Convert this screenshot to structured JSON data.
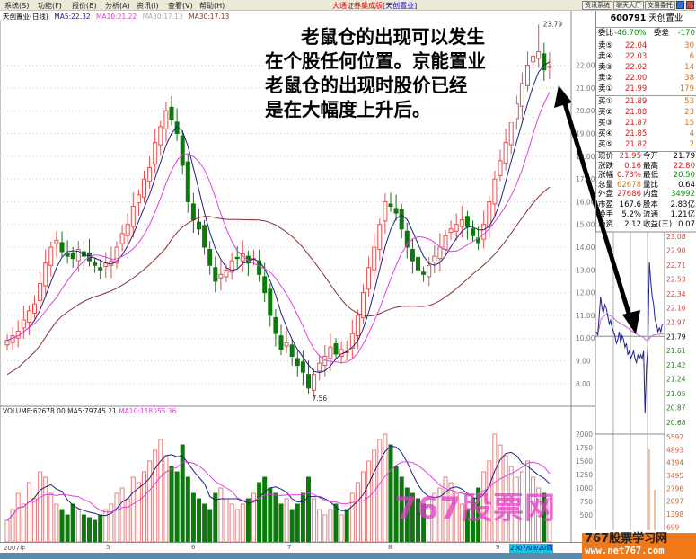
{
  "menu": [
    "系统(S)",
    "功能(F)",
    "报价(B)",
    "分析(A)",
    "资讯(I)",
    "查看(V)",
    "帮助(H)"
  ],
  "app_title": "大通证券集成版",
  "app_stock": "[天创置业]",
  "toolbar_buttons": [
    "资讯系统",
    "聊天大厅",
    "交易委托"
  ],
  "legend": {
    "name": "天创置业(日线)",
    "ma5": "MA5:22.32",
    "ma10": "MA10:21.22",
    "ma30a": "MA30:17.13",
    "ma30b": "MA30:17.13"
  },
  "volume_legend": {
    "vol": "VOLUME:62678.00",
    "ma5": "MA5:79745.21",
    "ma10": "MA10:118055.36"
  },
  "annotation": [
    "老鼠仓的出现可以发生",
    "在个股任何位置。京能置业",
    "老鼠仓的出现时股价已经",
    "是在大幅度上升后。"
  ],
  "colors": {
    "up": "#e05050",
    "down": "#0a7a0a",
    "ma5": "#202080",
    "ma10": "#e040e0",
    "ma30": "#8a3030",
    "arrow": "#000000"
  },
  "quote": {
    "code": "600791",
    "name": "天创置业",
    "weibi_label": "委比",
    "weibi": "-46.70%",
    "weicha_label": "委差",
    "weicha": "-170",
    "sell": [
      {
        "label": "卖⑤",
        "price": "22.04",
        "vol": "30"
      },
      {
        "label": "卖④",
        "price": "22.03",
        "vol": "6"
      },
      {
        "label": "卖③",
        "price": "22.02",
        "vol": "14"
      },
      {
        "label": "卖②",
        "price": "22.00",
        "vol": "38"
      },
      {
        "label": "卖①",
        "price": "21.99",
        "vol": "179"
      }
    ],
    "buy": [
      {
        "label": "买①",
        "price": "21.89",
        "vol": "53"
      },
      {
        "label": "买②",
        "price": "21.88",
        "vol": "23"
      },
      {
        "label": "买③",
        "price": "21.87",
        "vol": "15"
      },
      {
        "label": "买④",
        "price": "21.85",
        "vol": "4"
      },
      {
        "label": "买⑤",
        "price": "21.82",
        "vol": "2"
      }
    ],
    "stats": [
      {
        "l1": "现价",
        "v1": "21.95",
        "c1": "#d02020",
        "l2": "今开",
        "v2": "21.79",
        "c2": "#000"
      },
      {
        "l1": "涨跌",
        "v1": "0.16",
        "c1": "#d02020",
        "l2": "最高",
        "v2": "22.80",
        "c2": "#d02020"
      },
      {
        "l1": "涨幅",
        "v1": "0.73%",
        "c1": "#d02020",
        "l2": "最低",
        "v2": "20.50",
        "c2": "#0a8a0a"
      },
      {
        "l1": "总量",
        "v1": "62678",
        "c1": "#d08020",
        "l2": "量比",
        "v2": "0.64",
        "c2": "#000"
      },
      {
        "l1": "外盘",
        "v1": "27686",
        "c1": "#d02020",
        "l2": "内盘",
        "v2": "34992",
        "c2": "#0a8a0a"
      },
      {
        "l1": "市盈",
        "v1": "167.6",
        "c1": "#000",
        "l2": "股本",
        "v2": "2.83亿",
        "c2": "#000"
      },
      {
        "l1": "换手",
        "v1": "5.2%",
        "c1": "#000",
        "l2": "流通",
        "v2": "1.21亿",
        "c2": "#000"
      },
      {
        "l1": "净资",
        "v1": "2.12",
        "c1": "#000",
        "l2": "收益(三)",
        "v2": "0.07",
        "c2": "#000"
      }
    ]
  },
  "chart_data": [
    {
      "type": "candlestick",
      "title": "天创置业(日线)",
      "ylim": [
        7,
        24
      ],
      "yticks": [
        "22.00",
        "21.00",
        "20.00",
        "19.00",
        "18.00",
        "17.00",
        "16.00",
        "15.00",
        "14.00",
        "13.00",
        "12.00",
        "11.00",
        "10.00",
        "9.00",
        "8.00"
      ],
      "close": [
        9.9,
        10.1,
        10.3,
        10.8,
        11.2,
        11.5,
        12.4,
        13.3,
        14.0,
        14.3,
        13.8,
        13.6,
        13.5,
        13.9,
        13.6,
        13.4,
        13.2,
        13.0,
        13.3,
        13.4,
        14.0,
        14.6,
        15.0,
        15.8,
        16.3,
        17.0,
        17.5,
        18.6,
        19.3,
        20.0,
        19.6,
        19.0,
        17.6,
        16.0,
        15.2,
        14.8,
        14.0,
        13.2,
        12.5,
        12.8,
        13.0,
        13.4,
        13.5,
        13.7,
        13.3,
        13.5,
        12.8,
        12.0,
        11.0,
        10.2,
        9.5,
        9.8,
        9.2,
        8.8,
        8.5,
        7.8,
        8.4,
        8.9,
        9.2,
        9.6,
        9.3,
        9.5,
        9.4,
        10.2,
        11.0,
        12.0,
        13.1,
        14.0,
        15.0,
        16.0,
        15.8,
        15.5,
        14.8,
        14.0,
        13.4,
        13.0,
        12.8,
        13.2,
        13.6,
        14.0,
        14.5,
        14.8,
        15.0,
        15.2,
        14.9,
        14.5,
        14.2,
        15.0,
        16.0,
        17.0,
        17.8,
        18.6,
        19.5,
        20.3,
        21.2,
        22.0,
        22.4,
        22.6,
        21.8,
        21.95
      ],
      "high_label": "23.79",
      "low_label": "7.56",
      "high": 23.79,
      "low": 7.56,
      "x_labels": [
        "2007年",
        "5",
        "6",
        "7",
        "8",
        "9"
      ],
      "current_date": "2007/09/20四"
    },
    {
      "type": "bar",
      "title": "VOLUME",
      "ylim": [
        0,
        2200
      ],
      "yticks": [
        "2000",
        "1750",
        "1500",
        "1250",
        "1000",
        "750",
        "500"
      ],
      "values": [
        400,
        600,
        900,
        700,
        1100,
        800,
        1300,
        1200,
        900,
        700,
        600,
        500,
        700,
        600,
        500,
        450,
        400,
        500,
        600,
        700,
        900,
        1000,
        800,
        1200,
        1100,
        1300,
        1500,
        1700,
        1900,
        1600,
        1400,
        1300,
        1800,
        1200,
        900,
        800,
        700,
        600,
        900,
        1000,
        800,
        700,
        600,
        700,
        800,
        900,
        1100,
        1200,
        1000,
        900,
        700,
        800,
        600,
        700,
        900,
        1200,
        800,
        600,
        500,
        600,
        700,
        500,
        600,
        900,
        1100,
        1300,
        1500,
        1700,
        1900,
        2000,
        1800,
        1400,
        1200,
        1000,
        900,
        800,
        700,
        800,
        900,
        1000,
        1200,
        1100,
        900,
        700,
        600,
        800,
        1000,
        1300,
        1500,
        2000,
        1800,
        1600,
        1400,
        1200,
        1300,
        1500,
        1200,
        1000,
        900,
        800
      ]
    },
    {
      "type": "line",
      "title": "intraday",
      "ylim": [
        20.68,
        23.08
      ],
      "yticks": [
        "23.08",
        "22.90",
        "22.71",
        "22.53",
        "22.34",
        "22.16",
        "21.97",
        "21.79",
        "21.61",
        "21.42",
        "21.24",
        "21.05",
        "20.87",
        "20.68"
      ],
      "price": [
        21.85,
        21.8,
        22.05,
        22.3,
        22.15,
        22.1,
        22.2,
        22.15,
        22.05,
        21.95,
        22.0,
        21.9,
        21.85,
        21.8,
        21.7,
        21.75,
        21.85,
        21.7,
        21.8,
        21.75,
        21.65,
        21.7,
        21.55,
        21.6,
        21.5,
        21.55,
        21.6,
        21.5,
        21.45,
        21.55,
        21.5,
        21.55,
        21.5,
        21.6,
        20.8,
        21.4,
        21.65,
        22.75,
        22.5,
        22.3,
        22.2,
        22.0,
        21.95,
        21.85,
        21.9,
        21.85,
        21.95,
        21.95
      ],
      "vol_ticks": [
        "5592",
        "4893",
        "4194",
        "3495",
        "2796",
        "2097",
        "1398",
        "699"
      ]
    }
  ],
  "watermark": {
    "big": "767股票网",
    "box_title": "767股票学习网",
    "box_url": "www.net767.com"
  }
}
